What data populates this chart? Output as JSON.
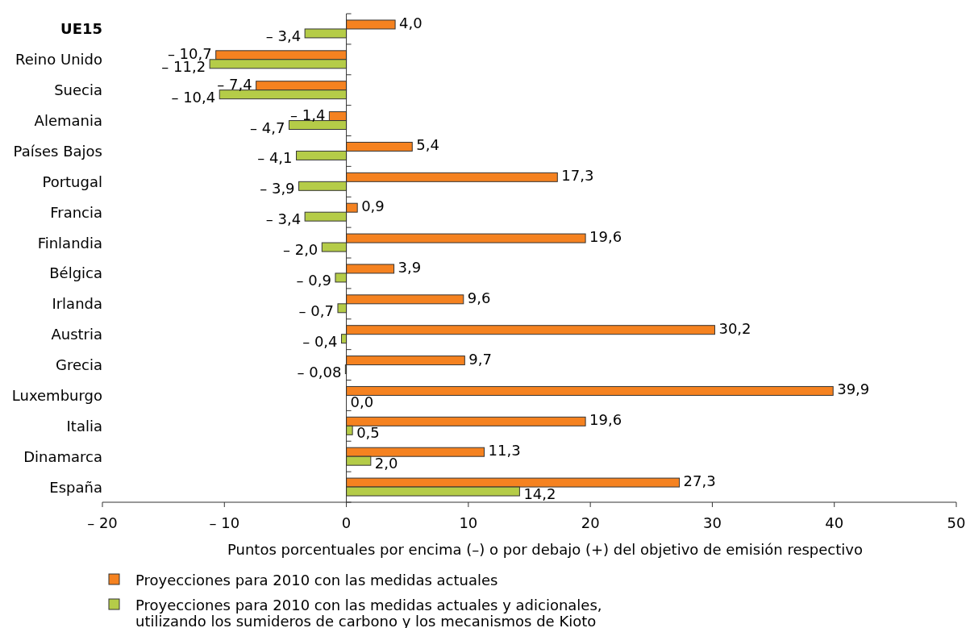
{
  "chart_data": {
    "type": "bar",
    "orientation": "horizontal",
    "xlabel": "Puntos porcentuales por encima (–) o por debajo (+) del objetivo de emisión respectivo",
    "categories": [
      "UE15",
      "Reino Unido",
      "Suecia",
      "Alemania",
      "Países Bajos",
      "Portugal",
      "Francia",
      "Finlandia",
      "Bélgica",
      "Irlanda",
      "Austria",
      "Grecia",
      "Luxemburgo",
      "Italia",
      "Dinamarca",
      "España"
    ],
    "series": [
      {
        "name": "Proyecciones para 2010 con las medidas actuales",
        "color": "#f58220",
        "values": [
          4.0,
          -10.7,
          -7.4,
          -1.4,
          5.4,
          17.3,
          0.9,
          19.6,
          3.9,
          9.6,
          30.2,
          9.7,
          39.9,
          19.6,
          11.3,
          27.3
        ],
        "value_labels": [
          "4,0",
          "– 10,7",
          "– 7,4",
          "– 1,4",
          "5,4",
          "17,3",
          "0,9",
          "19,6",
          "3,9",
          "9,6",
          "30,2",
          "9,7",
          "39,9",
          "19,6",
          "11,3",
          "27,3"
        ]
      },
      {
        "name": "Proyecciones para 2010 con las medidas actuales y adicionales, utilizando los sumideros de carbono y los mecanismos de Kioto",
        "color": "#b5cc48",
        "values": [
          -3.4,
          -11.2,
          -10.4,
          -4.7,
          -4.1,
          -3.9,
          -3.4,
          -2.0,
          -0.9,
          -0.7,
          -0.4,
          -0.08,
          0.0,
          0.5,
          2.0,
          14.2
        ],
        "value_labels": [
          "– 3,4",
          "– 11,2",
          "– 10,4",
          "– 4,7",
          "– 4,1",
          "– 3,9",
          "– 3,4",
          "– 2,0",
          "– 0,9",
          "– 0,7",
          "– 0,4",
          "– 0,08",
          "0,0",
          "0,5",
          "2,0",
          "14,2"
        ]
      }
    ],
    "xlim": [
      -20,
      50
    ],
    "xticks": [
      {
        "value": -20,
        "label": "– 20"
      },
      {
        "value": -10,
        "label": "– 10"
      },
      0,
      10,
      20,
      30,
      40,
      50
    ],
    "legend": "bottom"
  }
}
